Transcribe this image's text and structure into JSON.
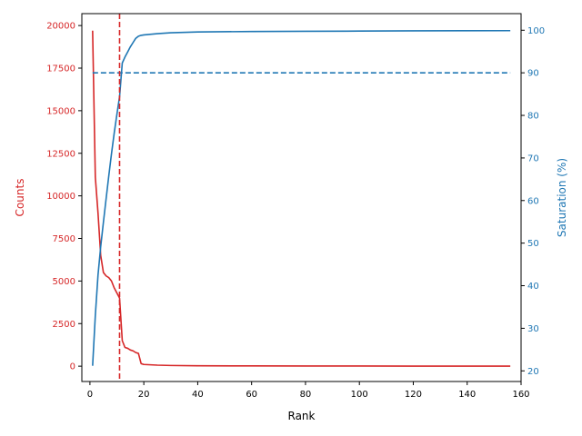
{
  "chart_data": {
    "type": "line",
    "xlabel": "Rank",
    "ylabel_left": "Counts",
    "ylabel_right": "Saturation (%)",
    "xlim": [
      -3,
      160
    ],
    "ylim_left": [
      -900,
      20700
    ],
    "ylim_right": [
      17.5,
      103.9
    ],
    "x_ticks": [
      0,
      20,
      40,
      60,
      80,
      100,
      120,
      140,
      160
    ],
    "y_left_ticks": [
      0,
      2500,
      5000,
      7500,
      10000,
      12500,
      15000,
      17500,
      20000
    ],
    "y_right_ticks": [
      20,
      30,
      40,
      50,
      60,
      70,
      80,
      90,
      100
    ],
    "grid": false,
    "colors": {
      "counts": "#d62728",
      "saturation": "#1f77b4",
      "axis": "#000000"
    },
    "counts_series": {
      "axis": "left",
      "x": [
        1,
        2,
        3,
        4,
        5,
        6,
        7,
        8,
        9,
        10,
        11,
        12,
        13,
        14,
        15,
        16,
        17,
        18,
        19,
        20,
        25,
        30,
        40,
        60,
        80,
        100,
        120,
        140,
        156
      ],
      "y": [
        19700,
        11100,
        9000,
        6500,
        5500,
        5300,
        5200,
        5000,
        4600,
        4300,
        4000,
        1500,
        1100,
        1050,
        950,
        900,
        800,
        750,
        150,
        100,
        60,
        40,
        25,
        15,
        10,
        8,
        5,
        3,
        2
      ]
    },
    "saturation_series": {
      "axis": "right",
      "x": [
        1,
        2,
        3,
        4,
        5,
        6,
        7,
        8,
        9,
        10,
        11,
        12,
        13,
        14,
        15,
        16,
        17,
        18,
        19,
        20,
        25,
        30,
        40,
        60,
        80,
        100,
        120,
        140,
        156
      ],
      "y": [
        21.2,
        33,
        42.5,
        49.2,
        54.9,
        60.4,
        65.8,
        71,
        75.8,
        80.2,
        84.4,
        92.3,
        93.7,
        94.9,
        96.1,
        97.1,
        98.1,
        98.6,
        98.8,
        98.9,
        99.2,
        99.4,
        99.6,
        99.7,
        99.75,
        99.8,
        99.85,
        99.88,
        99.9
      ]
    },
    "hline": {
      "axis": "right",
      "y": 90,
      "x_range": [
        1,
        156
      ],
      "style": "dashed",
      "color": "#1f77b4"
    },
    "vline": {
      "x": 11,
      "style": "dashed",
      "color": "#d62728"
    }
  }
}
